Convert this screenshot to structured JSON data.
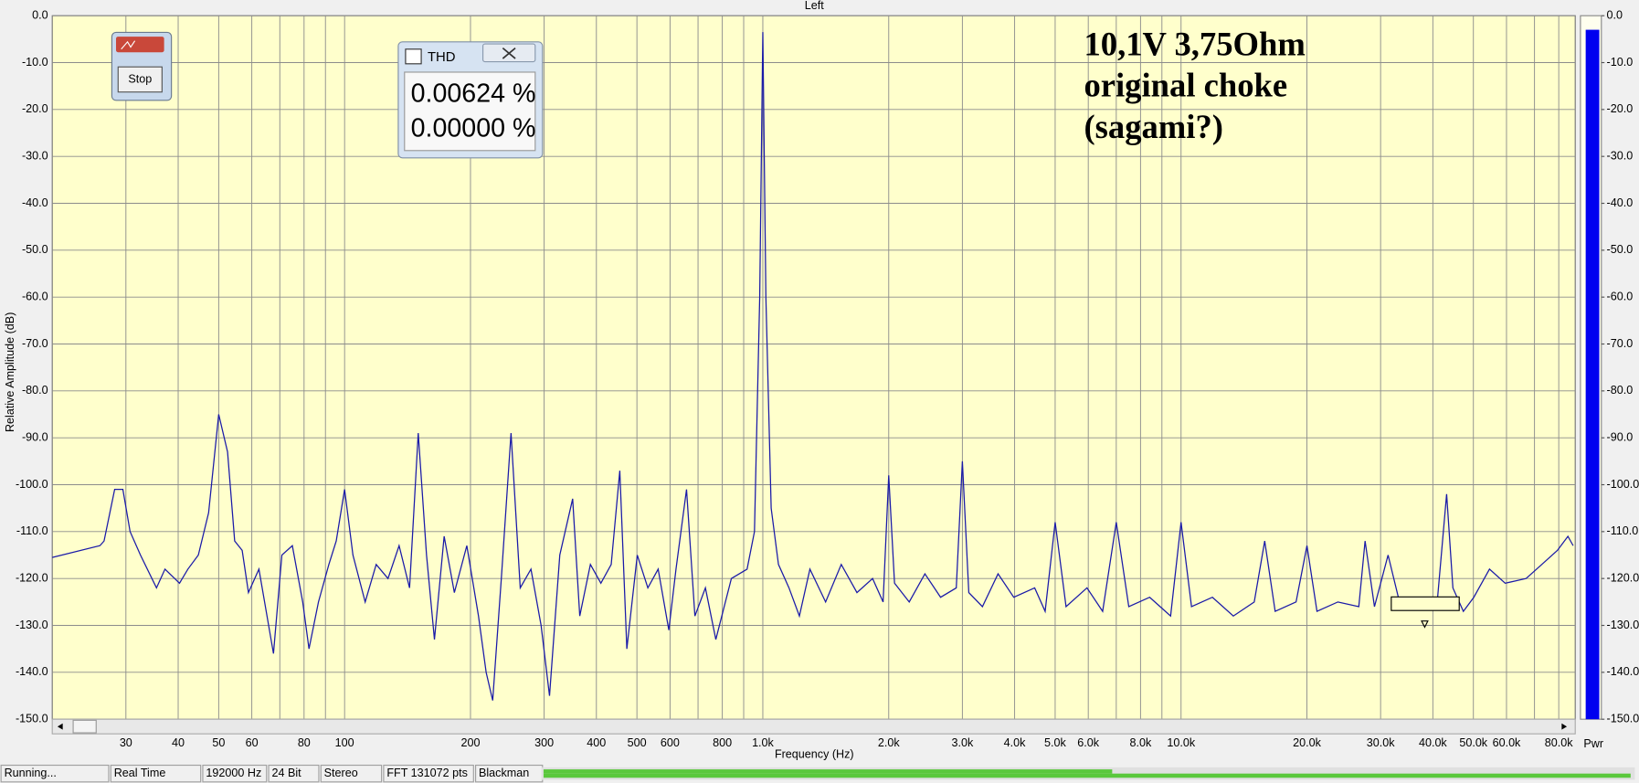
{
  "chart_data": {
    "type": "line",
    "title": "Left",
    "x_label": "Frequency (Hz)",
    "y_label": "Relative Amplitude (dB)",
    "annotation": [
      "10,1V 3,75Ohm",
      "original choke",
      "(sagami?)"
    ],
    "xscale": "log",
    "grid": true,
    "color": "#1a1aa8",
    "xlim": [
      20,
      87600
    ],
    "ylim": [
      -150,
      0
    ],
    "xticks": [
      30,
      40,
      50,
      60,
      80,
      100,
      200,
      300,
      400,
      500,
      600,
      800,
      {
        "value": 1000,
        "label": "1.0k"
      },
      {
        "value": 2000,
        "label": "2.0k"
      },
      {
        "value": 3000,
        "label": "3.0k"
      },
      {
        "value": 4000,
        "label": "4.0k"
      },
      {
        "value": 5000,
        "label": "5.0k"
      },
      {
        "value": 6000,
        "label": "6.0k"
      },
      {
        "value": 8000,
        "label": "8.0k"
      },
      {
        "value": 10000,
        "label": "10.0k"
      },
      {
        "value": 20000,
        "label": "20.0k"
      },
      {
        "value": 30000,
        "label": "30.0k"
      },
      {
        "value": 40000,
        "label": "40.0k"
      },
      {
        "value": 50000,
        "label": "50.0k"
      },
      {
        "value": 60000,
        "label": "60.0k"
      },
      {
        "value": 80000,
        "label": "80.0k"
      }
    ],
    "xminor": [
      70,
      90,
      700,
      900,
      7000,
      9000,
      70000
    ],
    "yticks": [
      {
        "value": 0,
        "label": "0.0"
      },
      {
        "value": -10,
        "label": "-10.0"
      },
      {
        "value": -20,
        "label": "-20.0"
      },
      {
        "value": -30,
        "label": "-30.0"
      },
      {
        "value": -40,
        "label": "-40.0"
      },
      {
        "value": -50,
        "label": "-50.0"
      },
      {
        "value": -60,
        "label": "-60.0"
      },
      {
        "value": -70,
        "label": "-70.0"
      },
      {
        "value": -80,
        "label": "-80.0"
      },
      {
        "value": -90,
        "label": "-90.0"
      },
      {
        "value": -100,
        "label": "-100.0"
      },
      {
        "value": -110,
        "label": "-110.0"
      },
      {
        "value": -120,
        "label": "-120.0"
      },
      {
        "value": -130,
        "label": "-130.0"
      },
      {
        "value": -140,
        "label": "-140.0"
      },
      {
        "value": -150,
        "label": "-150.0"
      }
    ],
    "y2lim": [
      -150,
      0
    ],
    "y2ticks": [
      {
        "value": 0,
        "label": "0.0"
      },
      {
        "value": -10,
        "label": "-10.0"
      },
      {
        "value": -20,
        "label": "-20.0"
      },
      {
        "value": -30,
        "label": "-30.0"
      },
      {
        "value": -40,
        "label": "-40.0"
      },
      {
        "value": -50,
        "label": "-50.0"
      },
      {
        "value": -60,
        "label": "-60.0"
      },
      {
        "value": -70,
        "label": "-70.0"
      },
      {
        "value": -80,
        "label": "-80.0"
      },
      {
        "value": -90,
        "label": "-90.0"
      },
      {
        "value": -100,
        "label": "-100.0"
      },
      {
        "value": -110,
        "label": "-110.0"
      },
      {
        "value": -120,
        "label": "-120.0"
      },
      {
        "value": -130,
        "label": "-130.0"
      },
      {
        "value": -140,
        "label": "-140.0"
      },
      {
        "value": -150,
        "label": "-150.0"
      }
    ],
    "meter": {
      "name": "Pwr",
      "value": -3,
      "color": "#0000f0"
    },
    "x": [
      20,
      26,
      26.6,
      28.2,
      29.5,
      30.7,
      32.5,
      35.5,
      37.2,
      40.3,
      42.2,
      44.7,
      47.3,
      50,
      52.5,
      54.6,
      56.9,
      58.9,
      62.4,
      67.6,
      70.8,
      75,
      79.4,
      82.2,
      86.6,
      91.7,
      95.5,
      100,
      104.7,
      112,
      119,
      127,
      135,
      143,
      150,
      157,
      164,
      173,
      183,
      196,
      209,
      218,
      226,
      237,
      250,
      263,
      279,
      295,
      309,
      327,
      351,
      365,
      387,
      410,
      434,
      455,
      473,
      501,
      531,
      562,
      596,
      620,
      657,
      688,
      729,
      772,
      841,
      917,
      955,
      983,
      1000,
      1017,
      1047,
      1090,
      1155,
      1223,
      1296,
      1413,
      1540,
      1679,
      1830,
      1939,
      2000,
      2065,
      2239,
      2441,
      2661,
      2901,
      3000,
      3108,
      3350,
      3651,
      3981,
      4467,
      4732,
      5000,
      5309,
      5957,
      6494,
      7000,
      7499,
      8414,
      9441,
      10000,
      10593,
      11885,
      13335,
      14962,
      15849,
      16788,
      18836,
      20000,
      21135,
      23714,
      26607,
      27542,
      29003,
      31261,
      33497,
      37584,
      40973,
      43152,
      44668,
      47315,
      50119,
      54638,
      59566,
      66834,
      72862,
      79433,
      84140,
      86596
    ],
    "values": [
      -115.5,
      -113,
      -112,
      -101,
      -101,
      -110,
      -115,
      -122,
      -118,
      -121,
      -118,
      -115,
      -106,
      -85,
      -93,
      -112,
      -114,
      -123,
      -118,
      -136,
      -115,
      -113,
      -125,
      -135,
      -125,
      -117,
      -112,
      -101,
      -115,
      -125,
      -117,
      -120,
      -113,
      -122,
      -89,
      -115,
      -133,
      -111,
      -123,
      -113,
      -128,
      -140,
      -146,
      -120,
      -89,
      -122,
      -118,
      -130,
      -145,
      -115,
      -103,
      -128,
      -117,
      -121,
      -117,
      -97,
      -135,
      -115,
      -122,
      -118,
      -131,
      -118,
      -101,
      -128,
      -122,
      -133,
      -120,
      -118,
      -110,
      -60,
      -3.5,
      -60,
      -105,
      -117,
      -122,
      -128,
      -118,
      -125,
      -117,
      -123,
      -120,
      -125,
      -98,
      -121,
      -125,
      -119,
      -124,
      -122,
      -95,
      -123,
      -126,
      -119,
      -124,
      -122,
      -127,
      -108,
      -126,
      -122,
      -127,
      -108,
      -126,
      -124,
      -128,
      -108,
      -126,
      -124,
      -128,
      -125,
      -112,
      -127,
      -125,
      -113,
      -127,
      -125,
      -126,
      -112,
      -126,
      -115,
      -126,
      -124,
      -125,
      -102,
      -122,
      -127,
      -124,
      -118,
      -121,
      -120,
      -117,
      -114,
      -111,
      -113
    ]
  },
  "stop_button": "Stop",
  "thd_window": {
    "title": "THD",
    "values": [
      "0.00624 %",
      "0.00000 %"
    ]
  },
  "status_bar": [
    "Running...",
    "Real Time",
    "192000 Hz",
    "24 Bit",
    "Stereo",
    "FFT 131072 pts",
    "Blackman"
  ]
}
